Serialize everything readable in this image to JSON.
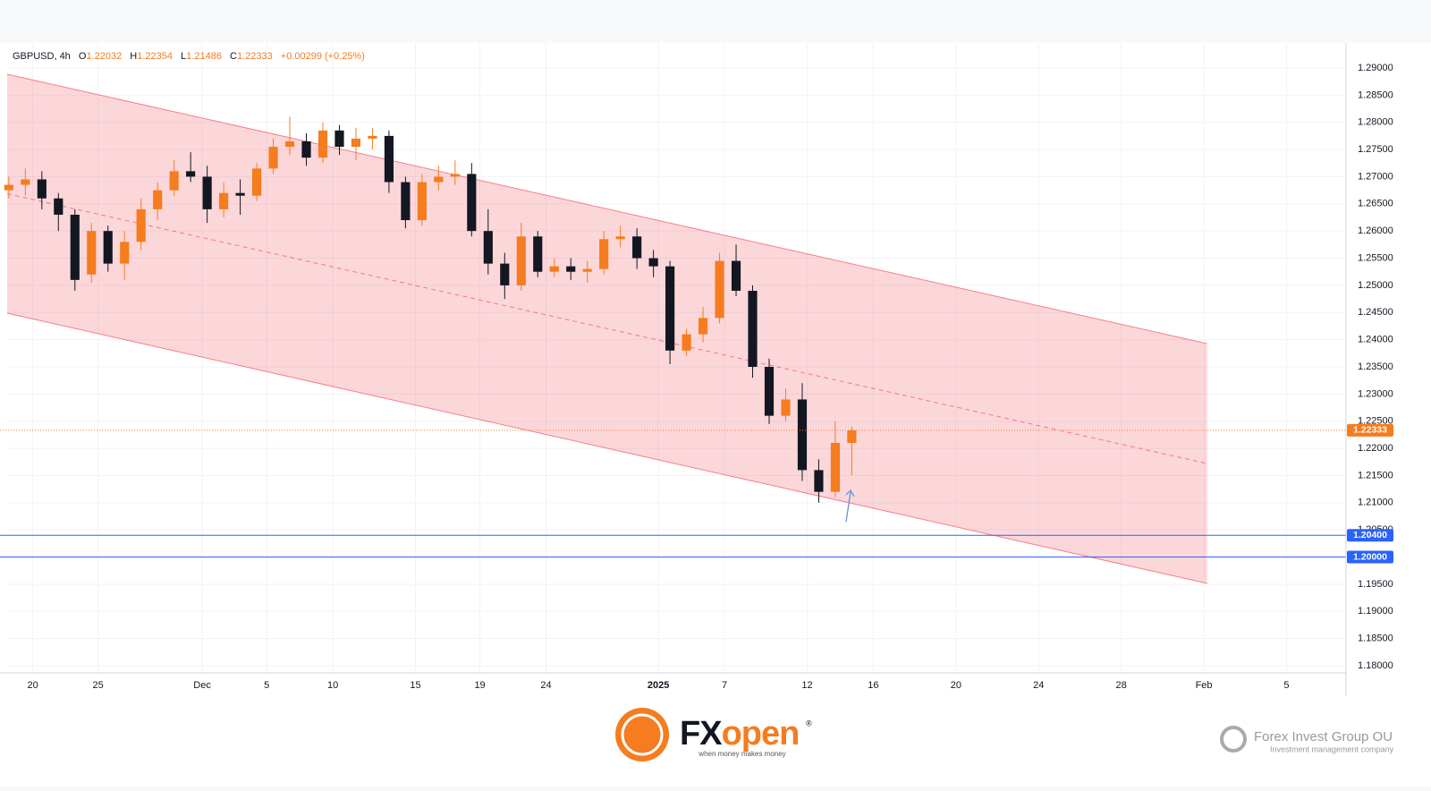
{
  "chart_data": {
    "type": "candlestick",
    "header": {
      "symbol": "GBPUSD, 4h",
      "o_label": "O",
      "open": "1.22032",
      "h_label": "H",
      "high": "1.22354",
      "l_label": "L",
      "low": "1.21486",
      "c_label": "C",
      "close": "1.22333",
      "change": "+0.00299 (+0.25%)"
    },
    "up_color": "#f57c1f",
    "down_color": "#131722",
    "xlim": [
      0.4,
      81.4
    ],
    "ylim": [
      1.17868,
      1.29428
    ],
    "grid": true,
    "xticks": [
      {
        "value": 1.95,
        "label": "20"
      },
      {
        "value": 5.9,
        "label": "25"
      },
      {
        "value": 12.2,
        "label": "Dec"
      },
      {
        "value": 16.1,
        "label": "5"
      },
      {
        "value": 20.1,
        "label": "10"
      },
      {
        "value": 25.1,
        "label": "15"
      },
      {
        "value": 29.0,
        "label": "19"
      },
      {
        "value": 33.0,
        "label": "24"
      },
      {
        "value": 39.8,
        "label": "2025"
      },
      {
        "value": 43.8,
        "label": "7"
      },
      {
        "value": 48.8,
        "label": "12"
      },
      {
        "value": 52.8,
        "label": "16"
      },
      {
        "value": 57.8,
        "label": "20"
      },
      {
        "value": 62.8,
        "label": "24"
      },
      {
        "value": 67.8,
        "label": "28"
      },
      {
        "value": 72.8,
        "label": "Feb"
      },
      {
        "value": 77.8,
        "label": "5"
      }
    ],
    "yticks": [
      {
        "value": 1.18,
        "label": "1.18000"
      },
      {
        "value": 1.185,
        "label": "1.18500"
      },
      {
        "value": 1.19,
        "label": "1.19000"
      },
      {
        "value": 1.195,
        "label": "1.19500"
      },
      {
        "value": 1.2,
        "label": "1.20000"
      },
      {
        "value": 1.205,
        "label": "1.20500"
      },
      {
        "value": 1.21,
        "label": "1.21000"
      },
      {
        "value": 1.215,
        "label": "1.21500"
      },
      {
        "value": 1.22,
        "label": "1.22000"
      },
      {
        "value": 1.225,
        "label": "1.22500"
      },
      {
        "value": 1.23,
        "label": "1.23000"
      },
      {
        "value": 1.235,
        "label": "1.23500"
      },
      {
        "value": 1.24,
        "label": "1.24000"
      },
      {
        "value": 1.245,
        "label": "1.24500"
      },
      {
        "value": 1.25,
        "label": "1.25000"
      },
      {
        "value": 1.255,
        "label": "1.25500"
      },
      {
        "value": 1.26,
        "label": "1.26000"
      },
      {
        "value": 1.265,
        "label": "1.26500"
      },
      {
        "value": 1.27,
        "label": "1.27000"
      },
      {
        "value": 1.275,
        "label": "1.27500"
      },
      {
        "value": 1.28,
        "label": "1.28000"
      },
      {
        "value": 1.285,
        "label": "1.28500"
      },
      {
        "value": 1.29,
        "label": "1.29000"
      }
    ],
    "candles": {
      "x": [
        0.5,
        1.5,
        2.5,
        3.5,
        4.5,
        5.5,
        6.5,
        7.5,
        8.5,
        9.5,
        10.5,
        11.5,
        12.5,
        13.5,
        14.5,
        15.5,
        16.5,
        17.5,
        18.5,
        19.5,
        20.5,
        21.5,
        22.5,
        23.5,
        24.5,
        25.5,
        26.5,
        27.5,
        28.5,
        29.5,
        30.5,
        31.5,
        32.5,
        33.5,
        34.5,
        35.5,
        36.5,
        37.5,
        38.5,
        39.5,
        40.5,
        41.5,
        42.5,
        43.5,
        44.5,
        45.5,
        46.5,
        47.5,
        48.5,
        49.5,
        50.5,
        51.5
      ],
      "open": [
        1.2675,
        1.2685,
        1.2695,
        1.266,
        1.263,
        1.252,
        1.26,
        1.254,
        1.258,
        1.264,
        1.2675,
        1.271,
        1.27,
        1.264,
        1.267,
        1.2665,
        1.2715,
        1.2755,
        1.2765,
        1.2735,
        1.2785,
        1.2755,
        1.277,
        1.2775,
        1.269,
        1.262,
        1.269,
        1.27,
        1.2705,
        1.26,
        1.254,
        1.25,
        1.259,
        1.2525,
        1.2535,
        1.2525,
        1.253,
        1.2585,
        1.259,
        1.255,
        1.2535,
        1.238,
        1.241,
        1.244,
        1.2545,
        1.249,
        1.235,
        1.226,
        1.229,
        1.216,
        1.212,
        1.221
      ],
      "high": [
        1.27,
        1.2715,
        1.271,
        1.267,
        1.264,
        1.2615,
        1.261,
        1.26,
        1.266,
        1.269,
        1.273,
        1.2745,
        1.272,
        1.269,
        1.2695,
        1.2725,
        1.277,
        1.281,
        1.278,
        1.28,
        1.2795,
        1.279,
        1.279,
        1.2785,
        1.27,
        1.2705,
        1.272,
        1.273,
        1.2725,
        1.264,
        1.256,
        1.2615,
        1.26,
        1.255,
        1.255,
        1.2545,
        1.26,
        1.261,
        1.2605,
        1.2565,
        1.2545,
        1.242,
        1.246,
        1.256,
        1.2575,
        1.25,
        1.2365,
        1.231,
        1.232,
        1.218,
        1.225,
        1.224
      ],
      "low": [
        1.266,
        1.2665,
        1.264,
        1.26,
        1.249,
        1.2505,
        1.2525,
        1.251,
        1.2565,
        1.262,
        1.2665,
        1.269,
        1.2615,
        1.2625,
        1.263,
        1.2655,
        1.2705,
        1.274,
        1.272,
        1.2725,
        1.274,
        1.273,
        1.275,
        1.267,
        1.2605,
        1.261,
        1.2675,
        1.2685,
        1.259,
        1.252,
        1.2475,
        1.249,
        1.2515,
        1.2515,
        1.251,
        1.2505,
        1.252,
        1.257,
        1.253,
        1.2515,
        1.2355,
        1.237,
        1.2395,
        1.243,
        1.248,
        1.233,
        1.2245,
        1.225,
        1.214,
        1.21,
        1.211,
        1.215
      ],
      "close": [
        1.2685,
        1.2695,
        1.266,
        1.263,
        1.251,
        1.26,
        1.254,
        1.258,
        1.264,
        1.2675,
        1.271,
        1.27,
        1.264,
        1.267,
        1.2665,
        1.2715,
        1.2755,
        1.2765,
        1.2735,
        1.2785,
        1.2755,
        1.277,
        1.2775,
        1.269,
        1.262,
        1.269,
        1.27,
        1.2705,
        1.26,
        1.254,
        1.25,
        1.259,
        1.2525,
        1.2535,
        1.2525,
        1.253,
        1.2585,
        1.259,
        1.255,
        1.2535,
        1.238,
        1.241,
        1.244,
        1.2545,
        1.249,
        1.235,
        1.226,
        1.229,
        1.216,
        1.212,
        1.221,
        1.2233
      ]
    },
    "channel": {
      "color": "#f23645",
      "x": [
        0.4,
        73.0
      ],
      "upper": [
        1.28885,
        1.23927
      ],
      "lower": [
        1.24488,
        1.19514
      ]
    },
    "current_price": {
      "value": 1.22333,
      "label": "1.22333",
      "color": "#f57c1f"
    },
    "levels": [
      {
        "value": 1.204,
        "label": "1.20400",
        "color": "#2962ff"
      },
      {
        "value": 1.2,
        "label": "1.20000",
        "color": "#2962ff"
      }
    ],
    "footer": {
      "brand_dark": "FX",
      "brand_color": "open",
      "registered": "®",
      "tagline": "when money makes money",
      "company": "Forex Invest Group OU",
      "company_subtitle": "Investment management company"
    }
  }
}
